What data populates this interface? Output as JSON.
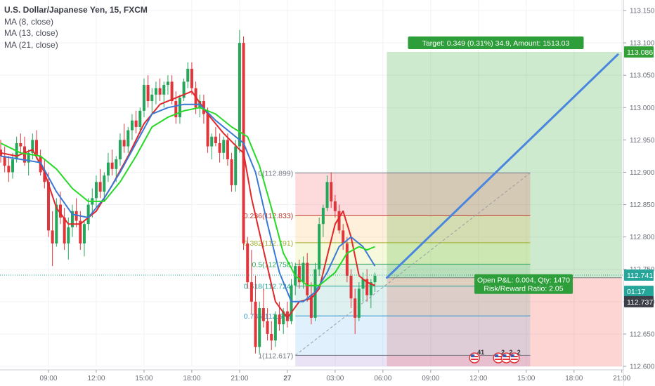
{
  "legend": {
    "symbol": "U.S. Dollar/Japanese Yen, 15, FXCM",
    "ma1": "MA (8, close)",
    "ma2": "MA (13, close)",
    "ma3": "MA (21, close)"
  },
  "chart_data": {
    "type": "candlestick",
    "symbol": "USDJPY",
    "timeframe": "15",
    "ylim": [
      112.595,
      113.16
    ],
    "y_ticks": [
      "113.150",
      "113.100",
      "113.050",
      "113.000",
      "112.950",
      "112.900",
      "112.850",
      "112.800",
      "112.750",
      "112.700",
      "112.650",
      "112.600"
    ],
    "y_tick_values": [
      113.15,
      113.1,
      113.05,
      113.0,
      112.95,
      112.9,
      112.85,
      112.8,
      112.75,
      112.7,
      112.65,
      112.6
    ],
    "x_ticks": [
      "09:00",
      "12:00",
      "15:00",
      "18:00",
      "21:00",
      "27",
      "03:00",
      "06:00",
      "09:00",
      "12:00",
      "15:00",
      "18:00",
      "21:00"
    ],
    "x_tick_index": [
      12,
      24,
      36,
      48,
      60,
      72,
      84,
      96,
      108,
      120,
      132,
      144,
      156
    ],
    "candles": [
      [
        112.935,
        112.95,
        112.915,
        112.925
      ],
      [
        112.925,
        112.94,
        112.9,
        112.91
      ],
      [
        112.91,
        112.925,
        112.885,
        112.9
      ],
      [
        112.9,
        112.93,
        112.89,
        112.92
      ],
      [
        112.92,
        112.955,
        112.915,
        112.945
      ],
      [
        112.945,
        112.96,
        112.93,
        112.94
      ],
      [
        112.94,
        112.955,
        112.91,
        112.915
      ],
      [
        112.915,
        112.935,
        112.895,
        112.93
      ],
      [
        112.93,
        112.96,
        112.92,
        112.95
      ],
      [
        112.95,
        112.965,
        112.92,
        112.925
      ],
      [
        112.925,
        112.935,
        112.895,
        112.9
      ],
      [
        112.9,
        112.92,
        112.875,
        112.885
      ],
      [
        112.885,
        112.9,
        112.8,
        112.81
      ],
      [
        112.81,
        112.84,
        112.755,
        112.79
      ],
      [
        112.79,
        112.86,
        112.785,
        112.85
      ],
      [
        112.85,
        112.87,
        112.82,
        112.83
      ],
      [
        112.83,
        112.845,
        112.78,
        112.79
      ],
      [
        112.79,
        112.83,
        112.765,
        112.815
      ],
      [
        112.815,
        112.85,
        112.8,
        112.84
      ],
      [
        112.84,
        112.86,
        112.815,
        112.825
      ],
      [
        112.825,
        112.84,
        112.78,
        112.79
      ],
      [
        112.79,
        112.825,
        112.77,
        112.82
      ],
      [
        112.82,
        112.86,
        112.81,
        112.85
      ],
      [
        112.85,
        112.875,
        112.83,
        112.86
      ],
      [
        112.86,
        112.895,
        112.845,
        112.885
      ],
      [
        112.885,
        112.905,
        112.86,
        112.87
      ],
      [
        112.87,
        112.9,
        112.855,
        112.895
      ],
      [
        112.895,
        112.93,
        112.885,
        112.915
      ],
      [
        112.915,
        112.935,
        112.895,
        112.905
      ],
      [
        112.905,
        112.925,
        112.885,
        112.92
      ],
      [
        112.92,
        112.96,
        112.91,
        112.95
      ],
      [
        112.95,
        112.975,
        112.93,
        112.94
      ],
      [
        112.94,
        112.97,
        112.93,
        112.965
      ],
      [
        112.965,
        112.99,
        112.95,
        112.98
      ],
      [
        112.98,
        112.995,
        112.96,
        112.97
      ],
      [
        112.97,
        113.0,
        112.96,
        112.995
      ],
      [
        112.995,
        113.045,
        112.985,
        113.035
      ],
      [
        113.035,
        113.05,
        113.0,
        113.01
      ],
      [
        113.01,
        113.03,
        112.99,
        113.02
      ],
      [
        113.02,
        113.04,
        113.005,
        113.03
      ],
      [
        113.03,
        113.045,
        113.01,
        113.02
      ],
      [
        113.02,
        113.04,
        113.0,
        113.035
      ],
      [
        113.035,
        113.05,
        113.02,
        113.04
      ],
      [
        113.04,
        113.05,
        113.005,
        113.01
      ],
      [
        113.01,
        113.025,
        112.975,
        112.985
      ],
      [
        112.985,
        113.02,
        112.975,
        113.015
      ],
      [
        113.015,
        113.045,
        113.01,
        113.04
      ],
      [
        113.04,
        113.07,
        113.03,
        113.06
      ],
      [
        113.06,
        113.07,
        113.02,
        113.03
      ],
      [
        113.03,
        113.04,
        112.99,
        113.0
      ],
      [
        113.0,
        113.02,
        112.985,
        113.01
      ],
      [
        113.01,
        113.02,
        112.975,
        112.99
      ],
      [
        112.99,
        113.0,
        112.93,
        112.94
      ],
      [
        112.94,
        112.96,
        112.92,
        112.955
      ],
      [
        112.955,
        112.97,
        112.94,
        112.945
      ],
      [
        112.945,
        112.96,
        112.915,
        112.93
      ],
      [
        112.93,
        112.955,
        112.92,
        112.95
      ],
      [
        112.95,
        112.96,
        112.91,
        112.92
      ],
      [
        112.92,
        112.93,
        112.87,
        112.88
      ],
      [
        112.88,
        112.95,
        112.87,
        112.94
      ],
      [
        112.94,
        113.12,
        112.93,
        113.1
      ],
      [
        113.1,
        113.11,
        112.78,
        112.79
      ],
      [
        112.79,
        112.8,
        112.72,
        112.73
      ],
      [
        112.73,
        112.78,
        112.68,
        112.7
      ],
      [
        112.7,
        112.74,
        112.62,
        112.63
      ],
      [
        112.63,
        112.7,
        112.62,
        112.69
      ],
      [
        112.69,
        112.72,
        112.66,
        112.67
      ],
      [
        112.67,
        112.69,
        112.64,
        112.65
      ],
      [
        112.65,
        112.67,
        112.625,
        112.64
      ],
      [
        112.64,
        112.685,
        112.63,
        112.68
      ],
      [
        112.68,
        112.7,
        112.655,
        112.665
      ],
      [
        112.665,
        112.69,
        112.65,
        112.685
      ],
      [
        112.685,
        112.7,
        112.66,
        112.67
      ],
      [
        112.67,
        112.735,
        112.665,
        112.725
      ],
      [
        112.725,
        112.76,
        112.71,
        112.755
      ],
      [
        112.755,
        112.765,
        112.72,
        112.73
      ],
      [
        112.73,
        112.77,
        112.72,
        112.76
      ],
      [
        112.76,
        112.775,
        112.7,
        112.71
      ],
      [
        112.71,
        112.73,
        112.665,
        112.675
      ],
      [
        112.675,
        112.76,
        112.67,
        112.75
      ],
      [
        112.75,
        112.83,
        112.74,
        112.82
      ],
      [
        112.82,
        112.85,
        112.8,
        112.845
      ],
      [
        112.845,
        112.895,
        112.84,
        112.885
      ],
      [
        112.885,
        112.9,
        112.845,
        112.855
      ],
      [
        112.855,
        112.865,
        112.83,
        112.84
      ],
      [
        112.84,
        112.85,
        112.805,
        112.81
      ],
      [
        112.81,
        112.82,
        112.78,
        112.79
      ],
      [
        112.79,
        112.8,
        112.73,
        112.74
      ],
      [
        112.74,
        112.75,
        112.69,
        112.705
      ],
      [
        112.705,
        112.72,
        112.65,
        112.675
      ],
      [
        112.675,
        112.73,
        112.67,
        112.72
      ],
      [
        112.72,
        112.745,
        112.7,
        112.735
      ],
      [
        112.735,
        112.75,
        112.7,
        112.71
      ],
      [
        112.71,
        112.735,
        112.69,
        112.73
      ],
      [
        112.73,
        112.745,
        112.715,
        112.74
      ]
    ],
    "moving_averages": [
      {
        "name": "MA (8, close)",
        "color": "#e0272b",
        "values": [
          [
            0,
            112.93
          ],
          [
            4,
            112.925
          ],
          [
            8,
            112.935
          ],
          [
            11,
            112.9
          ],
          [
            14,
            112.845
          ],
          [
            17,
            112.82
          ],
          [
            20,
            112.82
          ],
          [
            24,
            112.84
          ],
          [
            28,
            112.88
          ],
          [
            32,
            112.925
          ],
          [
            36,
            112.975
          ],
          [
            40,
            113.005
          ],
          [
            44,
            113.015
          ],
          [
            48,
            113.025
          ],
          [
            52,
            112.99
          ],
          [
            56,
            112.96
          ],
          [
            60,
            112.935
          ],
          [
            61,
            112.93
          ],
          [
            63,
            112.86
          ],
          [
            66,
            112.78
          ],
          [
            69,
            112.7
          ],
          [
            72,
            112.675
          ],
          [
            75,
            112.7
          ],
          [
            78,
            112.705
          ],
          [
            80,
            112.72
          ],
          [
            82,
            112.77
          ],
          [
            84,
            112.82
          ],
          [
            86,
            112.84
          ],
          [
            88,
            112.8
          ],
          [
            90,
            112.74
          ],
          [
            92,
            112.73
          ],
          [
            94,
            112.725
          ]
        ]
      },
      {
        "name": "MA (13, close)",
        "color": "#3979d3",
        "values": [
          [
            0,
            112.925
          ],
          [
            5,
            112.92
          ],
          [
            10,
            112.915
          ],
          [
            14,
            112.87
          ],
          [
            18,
            112.835
          ],
          [
            22,
            112.83
          ],
          [
            26,
            112.86
          ],
          [
            30,
            112.9
          ],
          [
            34,
            112.945
          ],
          [
            38,
            112.99
          ],
          [
            42,
            113.0
          ],
          [
            46,
            113.005
          ],
          [
            50,
            113.005
          ],
          [
            54,
            112.98
          ],
          [
            58,
            112.96
          ],
          [
            61,
            112.945
          ],
          [
            64,
            112.9
          ],
          [
            67,
            112.82
          ],
          [
            70,
            112.745
          ],
          [
            73,
            112.7
          ],
          [
            76,
            112.7
          ],
          [
            79,
            112.715
          ],
          [
            82,
            112.745
          ],
          [
            85,
            112.785
          ],
          [
            88,
            112.8
          ],
          [
            91,
            112.785
          ],
          [
            94,
            112.755
          ]
        ]
      },
      {
        "name": "MA (21, close)",
        "color": "#27d927",
        "values": [
          [
            0,
            112.945
          ],
          [
            5,
            112.93
          ],
          [
            10,
            112.925
          ],
          [
            14,
            112.905
          ],
          [
            18,
            112.875
          ],
          [
            22,
            112.855
          ],
          [
            26,
            112.855
          ],
          [
            30,
            112.885
          ],
          [
            34,
            112.925
          ],
          [
            38,
            112.97
          ],
          [
            42,
            112.985
          ],
          [
            46,
            112.995
          ],
          [
            50,
            113.0
          ],
          [
            54,
            112.99
          ],
          [
            58,
            112.97
          ],
          [
            62,
            112.955
          ],
          [
            65,
            112.91
          ],
          [
            68,
            112.845
          ],
          [
            71,
            112.775
          ],
          [
            74,
            112.74
          ],
          [
            77,
            112.725
          ],
          [
            80,
            112.725
          ],
          [
            84,
            112.745
          ],
          [
            87,
            112.775
          ],
          [
            90,
            112.785
          ],
          [
            92,
            112.78
          ],
          [
            94,
            112.785
          ]
        ]
      }
    ],
    "fib_retracement": {
      "levels": [
        {
          "ratio": "0",
          "price": "112.899",
          "label": "0(112.899)",
          "color": "#787b86",
          "value": 112.899
        },
        {
          "ratio": "0.236",
          "price": "112.833",
          "label": "0.236(112.833)",
          "color": "#c0392b",
          "value": 112.833
        },
        {
          "ratio": "0.382",
          "price": "112.791",
          "label": "0.382(112.791)",
          "color": "#9fb02a",
          "value": 112.791
        },
        {
          "ratio": "0.5",
          "price": "112.758",
          "label": "0.5(112.758)",
          "color": "#2ca65a",
          "value": 112.758
        },
        {
          "ratio": "0.618",
          "price": "112.724",
          "label": "0.618(112.724)",
          "color": "#26a69a",
          "value": 112.724
        },
        {
          "ratio": "0.786",
          "price": "112.678",
          "label": "0.786(112.678)",
          "color": "#3a98c8",
          "value": 112.678
        },
        {
          "ratio": "1",
          "price": "112.617",
          "label": "1(112.617)",
          "color": "#787b86",
          "value": 112.617
        }
      ],
      "start_index": 74,
      "end_index": 133
    },
    "position": {
      "type": "long",
      "entry": 112.737,
      "target": 113.086,
      "stop": 112.567,
      "start_index": 97,
      "end_index": 156,
      "target_label": "Target: 0.349 (0.31%) 34.9, Amount: 1513.03",
      "pl_label": "Open P&L: 0.004, Qty: 1470",
      "rr_label": "Risk/Reward Ratio: 2.05"
    },
    "projection_line": {
      "from": [
        97,
        112.737
      ],
      "to": [
        155,
        113.082
      ]
    },
    "price_tags": [
      {
        "label": "113.086",
        "value": 113.086,
        "color": "#32a037"
      },
      {
        "label": "112.741",
        "value": 112.741,
        "color": "#26a69a"
      },
      {
        "label": "01:17",
        "value": 112.716,
        "color": "#26a69a"
      },
      {
        "label": "112.737",
        "value": 112.7,
        "color": "#3c3f48"
      }
    ],
    "last_price": 112.741,
    "event_badges": [
      {
        "index": 119,
        "count": "41"
      },
      {
        "index": 125,
        "count": "2"
      },
      {
        "index": 127,
        "count": "2"
      },
      {
        "index": 129,
        "count": "2"
      }
    ],
    "colors": {
      "up": "#26a65b",
      "down": "#e0363b",
      "background": "#ffffff",
      "grid": "#f0f2f5"
    }
  }
}
